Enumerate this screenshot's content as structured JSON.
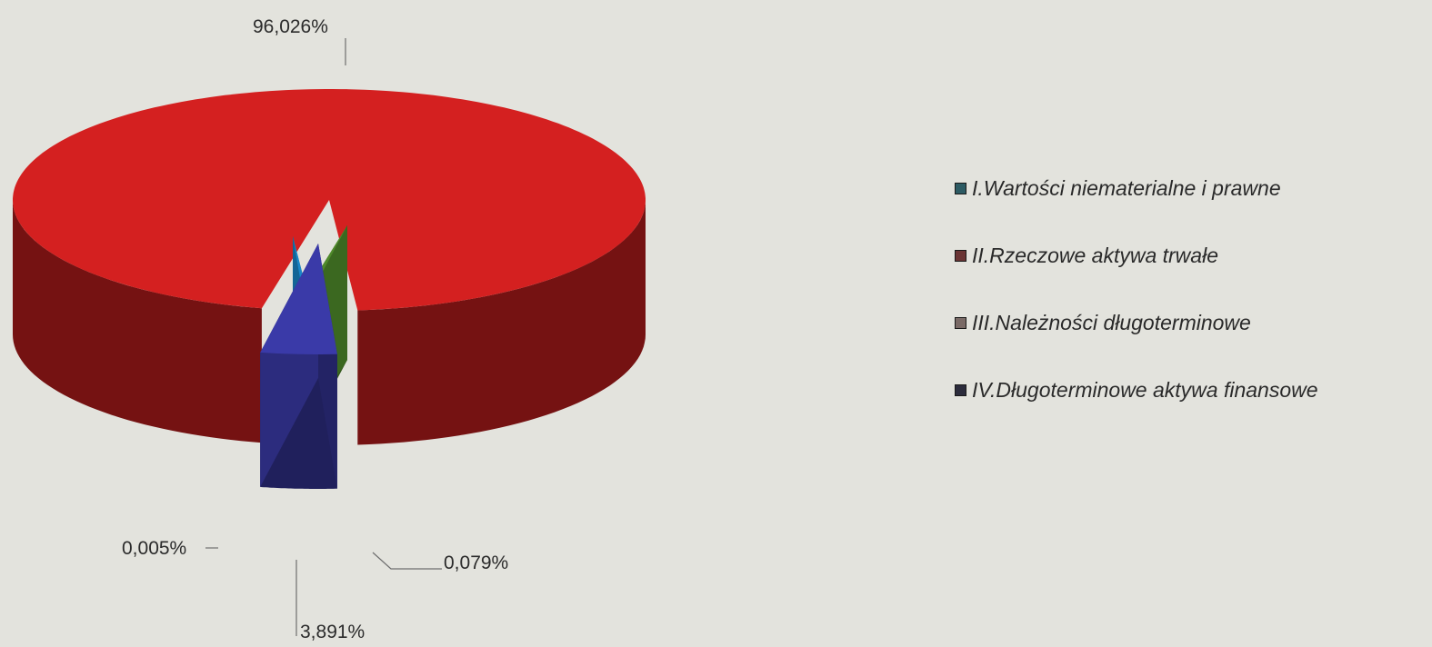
{
  "chart_data": {
    "type": "pie",
    "style": "3d-exploded",
    "title": "",
    "categories": [
      "I.Wartości niematerialne i prawne",
      "II.Rzeczowe aktywa trwałe",
      "III.Należności długoterminowe",
      "IV.Długoterminowe aktywa finansowe"
    ],
    "values": [
      0.005,
      96.026,
      0.079,
      3.891
    ],
    "data_labels": [
      "0,005%",
      "96,026%",
      "0,079%",
      "3,891%"
    ],
    "colors": [
      "#1a86c8",
      "#d42020",
      "#4f8a2a",
      "#3a3aa8"
    ],
    "legend": {
      "position": "right",
      "swatch_colors": [
        "#2d5b63",
        "#6a3434",
        "#7a6a66",
        "#2c2c3c"
      ]
    }
  }
}
